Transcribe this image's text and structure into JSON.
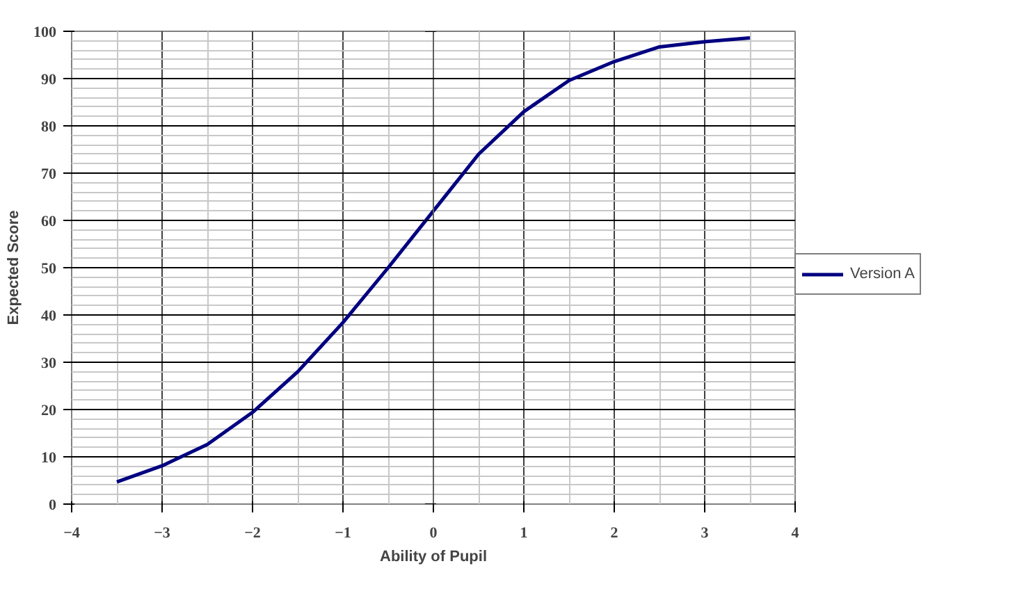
{
  "chart_data": {
    "type": "line",
    "xlabel": "Ability of Pupil",
    "ylabel": "Expected Score",
    "x": [
      -3.5,
      -3,
      -2.5,
      -2,
      -1.5,
      -1,
      -0.5,
      0,
      0.5,
      1,
      1.5,
      2,
      2.5,
      3,
      3.5
    ],
    "series": [
      {
        "name": "Version A",
        "color": "#000080",
        "values": [
          4.7,
          8.1,
          12.6,
          19.4,
          28,
          38.4,
          50,
          62,
          74,
          83,
          89.6,
          93.6,
          96.7,
          97.8,
          98.6
        ]
      }
    ],
    "xlim": [
      -4,
      4
    ],
    "ylim": [
      0,
      100
    ],
    "xticks": [
      -4,
      -3,
      -2,
      -1,
      0,
      1,
      2,
      3,
      4
    ],
    "yticks": [
      0,
      10,
      20,
      30,
      40,
      50,
      60,
      70,
      80,
      90,
      100
    ],
    "grid": true,
    "legend": "right",
    "marker": "none",
    "line_style": "solid"
  }
}
